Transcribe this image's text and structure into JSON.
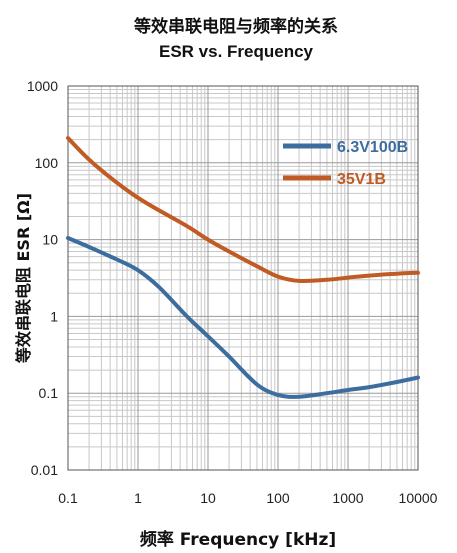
{
  "chart_data": {
    "type": "line",
    "title": "等效串联电阻与频率的关系",
    "subtitle": "ESR vs. Frequency",
    "xlabel": "频率 Frequency [kHz]",
    "ylabel": "等效串联电阻 ESR [Ω]",
    "x_scale": "log",
    "y_scale": "log",
    "xlim": [
      0.1,
      10000
    ],
    "ylim": [
      0.01,
      1000
    ],
    "x_ticks": [
      "0.1",
      "1",
      "10",
      "100",
      "1000",
      "10000"
    ],
    "y_ticks": [
      "0.01",
      "0.1",
      "1",
      "10",
      "100",
      "1000"
    ],
    "grid": true,
    "legend_position": "top-right",
    "series": [
      {
        "name": "6.3V100B",
        "color": "#3d6d9e",
        "x": [
          0.1,
          0.2,
          0.5,
          1,
          2,
          5,
          10,
          20,
          50,
          100,
          200,
          500,
          1000,
          2000,
          5000,
          10000
        ],
        "y": [
          10.5,
          8,
          5.5,
          4,
          2.4,
          1.0,
          0.55,
          0.3,
          0.13,
          0.095,
          0.09,
          0.1,
          0.11,
          0.12,
          0.14,
          0.16
        ]
      },
      {
        "name": "35V1B",
        "color": "#c05b24",
        "x": [
          0.1,
          0.2,
          0.5,
          1,
          2,
          5,
          10,
          20,
          50,
          100,
          200,
          500,
          1000,
          2000,
          5000,
          10000
        ],
        "y": [
          210,
          110,
          55,
          35,
          24,
          15,
          10,
          7,
          4.5,
          3.3,
          2.9,
          3.0,
          3.2,
          3.4,
          3.6,
          3.7
        ]
      }
    ]
  }
}
